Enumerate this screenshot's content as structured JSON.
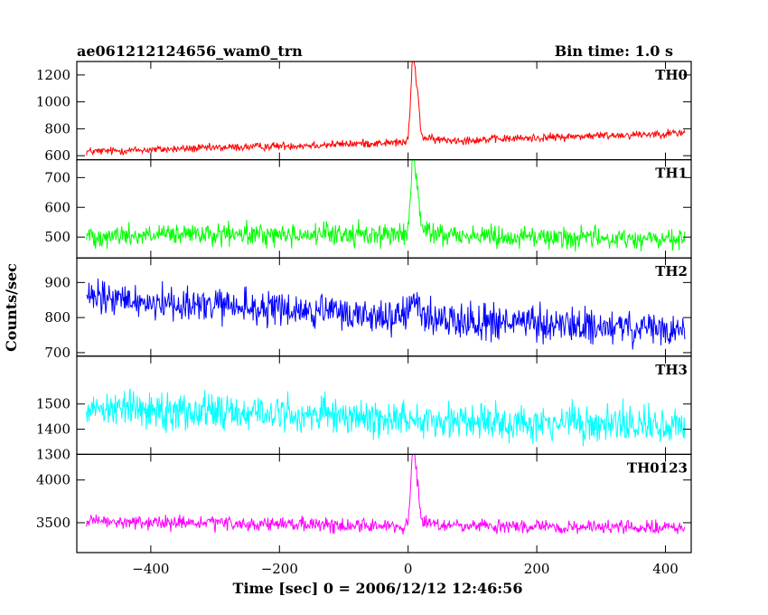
{
  "header": {
    "left_title": "ae061212124656_wam0_trn",
    "right_title": "Bin time: 1.0 s"
  },
  "chart_data": {
    "type": "line",
    "xlabel": "Time [sec] 0 = 2006/12/12 12:46:56",
    "ylabel": "Counts/sec",
    "xlim": [
      -515,
      440
    ],
    "x_ticks": [
      -400,
      -200,
      0,
      200,
      400
    ],
    "x_range": [
      -500,
      430
    ],
    "bin_time_s": 1.0,
    "grid": false,
    "legend": "none",
    "panels": [
      {
        "name": "TH0",
        "color": "#ff0000",
        "ylim": [
          570,
          1300
        ],
        "y_ticks": [
          600,
          800,
          1000,
          1200
        ],
        "baseline_start": 630,
        "baseline_end": 770,
        "post_burst_level": 700,
        "noise_amplitude": 45,
        "peak": 1300,
        "peak_time": 8
      },
      {
        "name": "TH1",
        "color": "#00ff00",
        "ylim": [
          430,
          760
        ],
        "y_ticks": [
          500,
          600,
          700
        ],
        "baseline_start": 505,
        "baseline_end": 490,
        "post_burst_level": 510,
        "noise_amplitude": 55,
        "peak": 760,
        "peak_time": 8
      },
      {
        "name": "TH2",
        "color": "#0000ff",
        "ylim": [
          690,
          970
        ],
        "y_ticks": [
          700,
          800,
          900
        ],
        "baseline_start": 855,
        "baseline_end": 760,
        "post_burst_level": 800,
        "noise_amplitude": 75,
        "peak": 860,
        "peak_time": 8
      },
      {
        "name": "TH3",
        "color": "#00ffff",
        "ylim": [
          1300,
          1690
        ],
        "y_ticks": [
          1300,
          1400,
          1500
        ],
        "baseline_start": 1490,
        "baseline_end": 1410,
        "post_burst_level": 1440,
        "noise_amplitude": 110,
        "peak": 1450,
        "peak_time": 8
      },
      {
        "name": "TH0123",
        "color": "#ff00ff",
        "ylim": [
          3150,
          4300
        ],
        "y_ticks": [
          3500,
          4000
        ],
        "baseline_start": 3510,
        "baseline_end": 3440,
        "post_burst_level": 3460,
        "noise_amplitude": 120,
        "peak": 4300,
        "peak_time": 8
      }
    ]
  }
}
